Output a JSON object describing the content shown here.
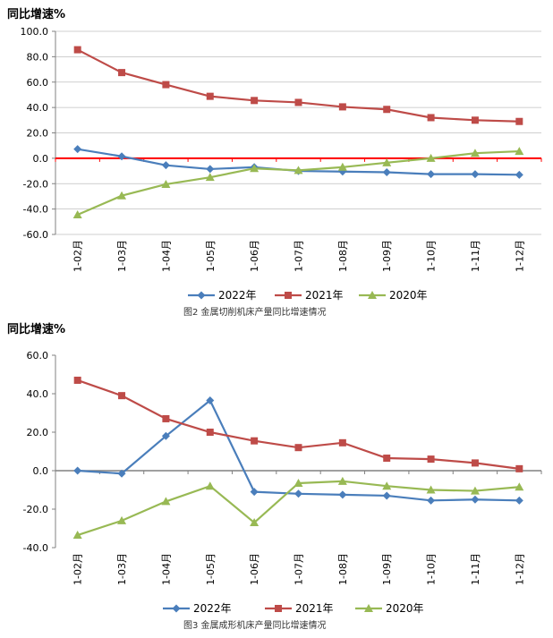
{
  "chart_data": [
    {
      "type": "line",
      "ylabel": "同比增速%",
      "categories": [
        "1-02月",
        "1-03月",
        "1-04月",
        "1-05月",
        "1-06月",
        "1-07月",
        "1-08月",
        "1-09月",
        "1-10月",
        "1-11月",
        "1-12月"
      ],
      "ylim": [
        -60,
        100
      ],
      "yticks": [
        "100.0",
        "80.0",
        "60.0",
        "40.0",
        "20.0",
        "0.0",
        "-20.0",
        "-40.0",
        "-60.0"
      ],
      "ytick_values": [
        100,
        80,
        60,
        40,
        20,
        0,
        -20,
        -40,
        -60
      ],
      "grid": true,
      "zero_line_color": "#FF0000",
      "legend_position": "bottom",
      "caption": "图2 金属切削机床产量同比增速情况",
      "series": [
        {
          "name": "2022年",
          "color": "#4A7EBB",
          "marker": "diamond",
          "values": [
            7.2,
            1.5,
            -5.5,
            -8.5,
            -7.0,
            -10.0,
            -10.5,
            -11.0,
            -12.5,
            -12.5,
            -13.0
          ]
        },
        {
          "name": "2021年",
          "color": "#BE4B48",
          "marker": "square",
          "values": [
            85.5,
            67.5,
            58.0,
            48.8,
            45.5,
            44.0,
            40.5,
            38.5,
            32.0,
            30.0,
            29.0
          ]
        },
        {
          "name": "2020年",
          "color": "#98B954",
          "marker": "triangle",
          "values": [
            -44.5,
            -29.5,
            -20.5,
            -15.0,
            -8.0,
            -9.5,
            -7.0,
            -3.5,
            0.0,
            4.0,
            5.5
          ]
        }
      ]
    },
    {
      "type": "line",
      "ylabel": "同比增速%",
      "categories": [
        "1-02月",
        "1-03月",
        "1-04月",
        "1-05月",
        "1-06月",
        "1-07月",
        "1-08月",
        "1-09月",
        "1-10月",
        "1-11月",
        "1-12月"
      ],
      "ylim": [
        -40,
        60
      ],
      "yticks": [
        "60.0",
        "40.0",
        "20.0",
        "0.0",
        "-20.0",
        "-40.0"
      ],
      "ytick_values": [
        60,
        40,
        20,
        0,
        -20,
        -40
      ],
      "grid": false,
      "zero_line_color": "#808080",
      "legend_position": "bottom",
      "caption": "图3 金属成形机床产量同比增速情况",
      "series": [
        {
          "name": "2022年",
          "color": "#4A7EBB",
          "marker": "diamond",
          "values": [
            0.0,
            -1.5,
            18.0,
            36.5,
            -11.0,
            -12.0,
            -12.5,
            -13.0,
            -15.5,
            -15.0,
            -15.5
          ]
        },
        {
          "name": "2021年",
          "color": "#BE4B48",
          "marker": "square",
          "values": [
            47.0,
            39.0,
            27.0,
            20.0,
            15.5,
            12.0,
            14.5,
            6.5,
            6.0,
            4.0,
            1.0
          ]
        },
        {
          "name": "2020年",
          "color": "#98B954",
          "marker": "triangle",
          "values": [
            -33.5,
            -26.0,
            -16.0,
            -8.0,
            -27.0,
            -6.5,
            -5.5,
            -8.0,
            -10.0,
            -10.5,
            -8.5
          ]
        }
      ]
    }
  ]
}
